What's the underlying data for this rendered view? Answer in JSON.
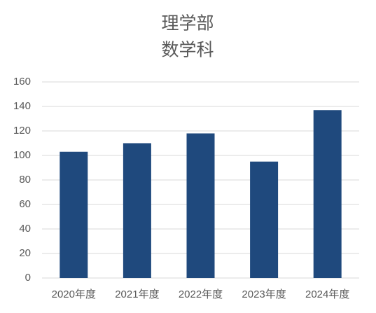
{
  "chart_data": {
    "type": "bar",
    "title": "理学部",
    "subtitle": "数学科",
    "categories": [
      "2020年度",
      "2021年度",
      "2022年度",
      "2023年度",
      "2024年度"
    ],
    "values": [
      103,
      110,
      118,
      95,
      137
    ],
    "color": "#1f497d",
    "ylim": [
      0,
      160
    ],
    "yticks": [
      0,
      20,
      40,
      60,
      80,
      100,
      120,
      140,
      160
    ],
    "grid": true
  }
}
